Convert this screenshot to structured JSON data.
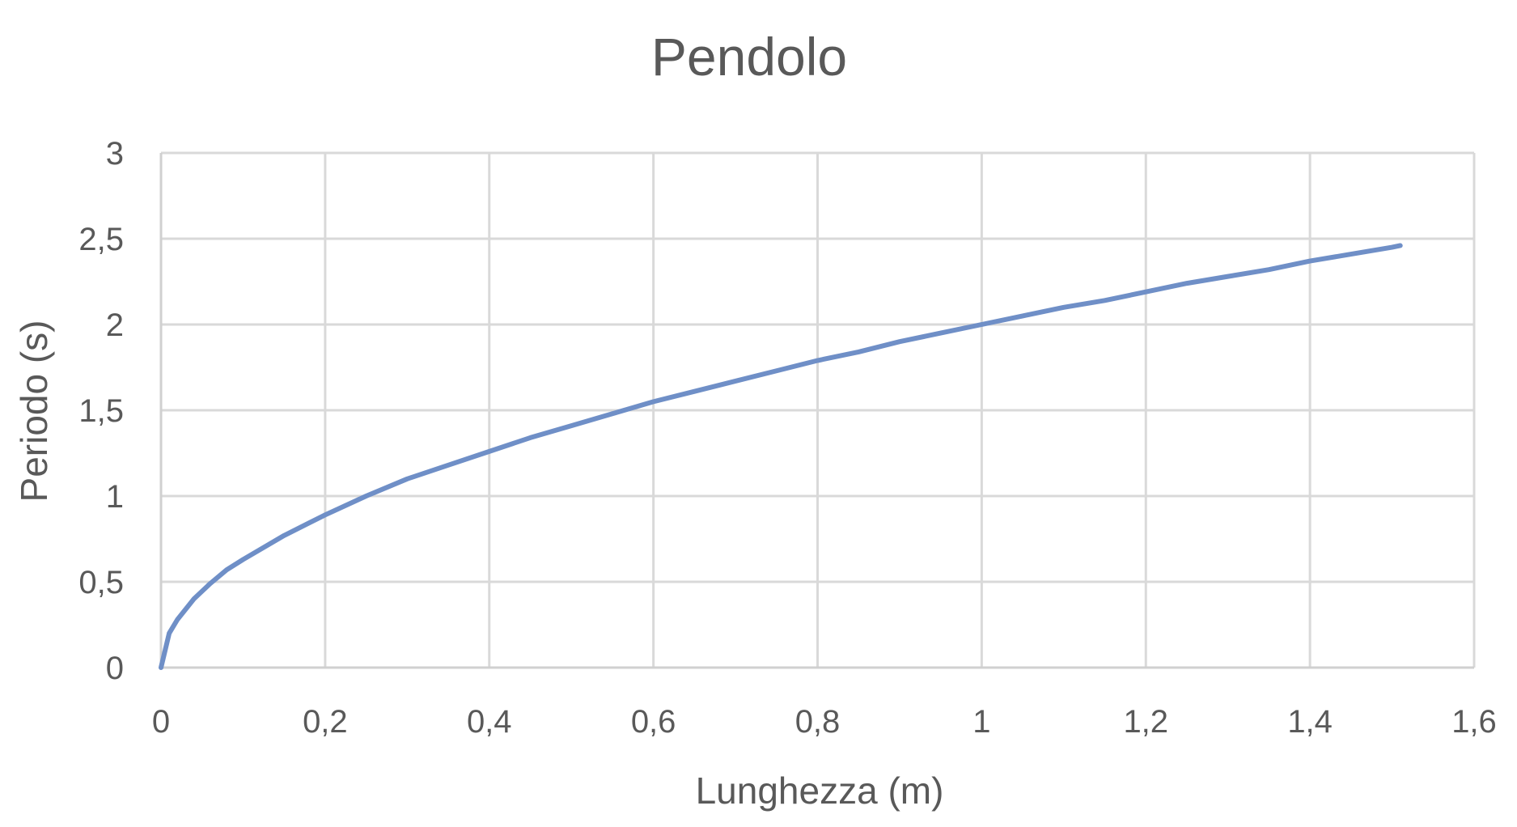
{
  "chart_data": {
    "type": "line",
    "title": "Pendolo",
    "xlabel": "Lunghezza (m)",
    "ylabel": "Periodo (s)",
    "xlim": [
      0,
      1.6
    ],
    "ylim": [
      0,
      3
    ],
    "x_ticks": [
      0,
      0.2,
      0.4,
      0.6,
      0.8,
      1,
      1.2,
      1.4,
      1.6
    ],
    "x_tick_labels": [
      "0",
      "0,2",
      "0,4",
      "0,6",
      "0,8",
      "1",
      "1,2",
      "1,4",
      "1,6"
    ],
    "y_ticks": [
      0,
      0.5,
      1,
      1.5,
      2,
      2.5,
      3
    ],
    "y_tick_labels": [
      "0",
      "0,5",
      "1",
      "1,5",
      "2",
      "2,5",
      "3"
    ],
    "grid": true,
    "legend": "none",
    "series": [
      {
        "color": "#6f8fc7",
        "points": [
          [
            0,
            0
          ],
          [
            0.01,
            0.2
          ],
          [
            0.02,
            0.28
          ],
          [
            0.04,
            0.4
          ],
          [
            0.06,
            0.49
          ],
          [
            0.08,
            0.57
          ],
          [
            0.1,
            0.63
          ],
          [
            0.15,
            0.77
          ],
          [
            0.2,
            0.89
          ],
          [
            0.25,
            1.0
          ],
          [
            0.3,
            1.1
          ],
          [
            0.35,
            1.18
          ],
          [
            0.4,
            1.26
          ],
          [
            0.45,
            1.34
          ],
          [
            0.5,
            1.41
          ],
          [
            0.55,
            1.48
          ],
          [
            0.6,
            1.55
          ],
          [
            0.65,
            1.61
          ],
          [
            0.7,
            1.67
          ],
          [
            0.75,
            1.73
          ],
          [
            0.8,
            1.79
          ],
          [
            0.85,
            1.84
          ],
          [
            0.9,
            1.9
          ],
          [
            0.95,
            1.95
          ],
          [
            1.0,
            2.0
          ],
          [
            1.05,
            2.05
          ],
          [
            1.1,
            2.1
          ],
          [
            1.15,
            2.14
          ],
          [
            1.2,
            2.19
          ],
          [
            1.25,
            2.24
          ],
          [
            1.3,
            2.28
          ],
          [
            1.35,
            2.32
          ],
          [
            1.4,
            2.37
          ],
          [
            1.45,
            2.41
          ],
          [
            1.5,
            2.45
          ],
          [
            1.51,
            2.46
          ]
        ]
      }
    ]
  }
}
